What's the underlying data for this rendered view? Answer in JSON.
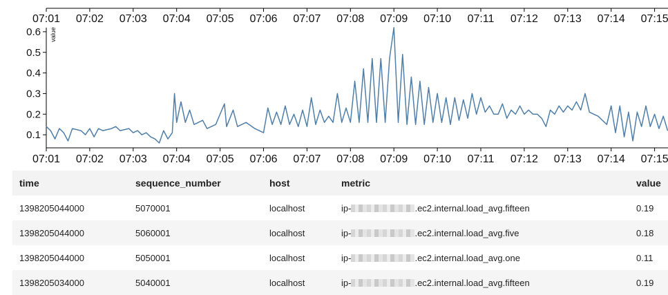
{
  "chart_data": {
    "type": "line",
    "title": "",
    "xlabel": "",
    "ylabel": "value",
    "x_tick_labels": [
      "07:01",
      "07:02",
      "07:03",
      "07:04",
      "07:05",
      "07:06",
      "07:07",
      "07:08",
      "07:09",
      "07:10",
      "07:11",
      "07:12",
      "07:13",
      "07:14",
      "07:15"
    ],
    "x_range": [
      "07:01",
      "07:15.3"
    ],
    "ylim": [
      0.05,
      0.65
    ],
    "y_ticks": [
      0.1,
      0.2,
      0.3,
      0.4,
      0.5,
      0.6
    ],
    "grid": false,
    "color": "#4f7ea8",
    "series": [
      {
        "values": [
          [
            "07:01.0",
            0.14
          ],
          [
            "07:01.1",
            0.12
          ],
          [
            "07:01.2",
            0.08
          ],
          [
            "07:01.3",
            0.13
          ],
          [
            "07:01.4",
            0.11
          ],
          [
            "07:01.5",
            0.07
          ],
          [
            "07:01.6",
            0.13
          ],
          [
            "07:01.8",
            0.12
          ],
          [
            "07:01.9",
            0.1
          ],
          [
            "07:02.0",
            0.13
          ],
          [
            "07:02.1",
            0.09
          ],
          [
            "07:02.2",
            0.13
          ],
          [
            "07:02.3",
            0.12
          ],
          [
            "07:02.5",
            0.13
          ],
          [
            "07:02.6",
            0.14
          ],
          [
            "07:02.7",
            0.12
          ],
          [
            "07:02.9",
            0.13
          ],
          [
            "07:03.0",
            0.11
          ],
          [
            "07:03.1",
            0.12
          ],
          [
            "07:03.2",
            0.1
          ],
          [
            "07:03.3",
            0.11
          ],
          [
            "07:03.4",
            0.09
          ],
          [
            "07:03.5",
            0.08
          ],
          [
            "07:03.6",
            0.06
          ],
          [
            "07:03.7",
            0.12
          ],
          [
            "07:03.8",
            0.08
          ],
          [
            "07:03.9",
            0.11
          ],
          [
            "07:03.95",
            0.3
          ],
          [
            "07:04.0",
            0.16
          ],
          [
            "07:04.1",
            0.26
          ],
          [
            "07:04.2",
            0.16
          ],
          [
            "07:04.3",
            0.22
          ],
          [
            "07:04.4",
            0.15
          ],
          [
            "07:04.6",
            0.17
          ],
          [
            "07:04.7",
            0.13
          ],
          [
            "07:04.9",
            0.15
          ],
          [
            "07:05.1",
            0.25
          ],
          [
            "07:05.15",
            0.14
          ],
          [
            "07:05.3",
            0.22
          ],
          [
            "07:05.4",
            0.14
          ],
          [
            "07:05.6",
            0.16
          ],
          [
            "07:05.8",
            0.13
          ],
          [
            "07:05.9",
            0.12
          ],
          [
            "07:06.0",
            0.11
          ],
          [
            "07:06.1",
            0.23
          ],
          [
            "07:06.2",
            0.15
          ],
          [
            "07:06.3",
            0.21
          ],
          [
            "07:06.4",
            0.15
          ],
          [
            "07:06.5",
            0.24
          ],
          [
            "07:06.6",
            0.15
          ],
          [
            "07:06.7",
            0.2
          ],
          [
            "07:06.8",
            0.14
          ],
          [
            "07:06.9",
            0.22
          ],
          [
            "07:07.0",
            0.14
          ],
          [
            "07:07.1",
            0.28
          ],
          [
            "07:07.2",
            0.15
          ],
          [
            "07:07.3",
            0.22
          ],
          [
            "07:07.4",
            0.16
          ],
          [
            "07:07.5",
            0.19
          ],
          [
            "07:07.6",
            0.16
          ],
          [
            "07:07.7",
            0.3
          ],
          [
            "07:07.8",
            0.16
          ],
          [
            "07:07.9",
            0.23
          ],
          [
            "07:08.0",
            0.16
          ],
          [
            "07:08.1",
            0.36
          ],
          [
            "07:08.2",
            0.16
          ],
          [
            "07:08.3",
            0.42
          ],
          [
            "07:08.4",
            0.16
          ],
          [
            "07:08.5",
            0.47
          ],
          [
            "07:08.6",
            0.16
          ],
          [
            "07:08.7",
            0.47
          ],
          [
            "07:08.8",
            0.16
          ],
          [
            "07:08.9",
            0.47
          ],
          [
            "07:09.0",
            0.62
          ],
          [
            "07:09.1",
            0.16
          ],
          [
            "07:09.2",
            0.49
          ],
          [
            "07:09.3",
            0.15
          ],
          [
            "07:09.4",
            0.38
          ],
          [
            "07:09.5",
            0.15
          ],
          [
            "07:09.6",
            0.36
          ],
          [
            "07:09.7",
            0.15
          ],
          [
            "07:09.8",
            0.33
          ],
          [
            "07:09.9",
            0.16
          ],
          [
            "07:10.0",
            0.3
          ],
          [
            "07:10.1",
            0.16
          ],
          [
            "07:10.2",
            0.28
          ],
          [
            "07:10.3",
            0.15
          ],
          [
            "07:10.4",
            0.28
          ],
          [
            "07:10.5",
            0.17
          ],
          [
            "07:10.6",
            0.27
          ],
          [
            "07:10.7",
            0.18
          ],
          [
            "07:10.8",
            0.3
          ],
          [
            "07:10.9",
            0.2
          ],
          [
            "07:11.0",
            0.28
          ],
          [
            "07:11.1",
            0.21
          ],
          [
            "07:11.2",
            0.24
          ],
          [
            "07:11.3",
            0.2
          ],
          [
            "07:11.4",
            0.2
          ],
          [
            "07:11.5",
            0.25
          ],
          [
            "07:11.6",
            0.18
          ],
          [
            "07:11.7",
            0.22
          ],
          [
            "07:11.8",
            0.2
          ],
          [
            "07:11.9",
            0.24
          ],
          [
            "07:12.0",
            0.2
          ],
          [
            "07:12.1",
            0.22
          ],
          [
            "07:12.2",
            0.2
          ],
          [
            "07:12.3",
            0.2
          ],
          [
            "07:12.4",
            0.18
          ],
          [
            "07:12.5",
            0.14
          ],
          [
            "07:12.6",
            0.22
          ],
          [
            "07:12.7",
            0.2
          ],
          [
            "07:12.8",
            0.24
          ],
          [
            "07:12.9",
            0.21
          ],
          [
            "07:13.0",
            0.24
          ],
          [
            "07:13.1",
            0.22
          ],
          [
            "07:13.2",
            0.26
          ],
          [
            "07:13.3",
            0.22
          ],
          [
            "07:13.4",
            0.3
          ],
          [
            "07:13.5",
            0.21
          ],
          [
            "07:13.6",
            0.2
          ],
          [
            "07:13.7",
            0.19
          ],
          [
            "07:13.8",
            0.17
          ],
          [
            "07:13.9",
            0.15
          ],
          [
            "07:14.0",
            0.24
          ],
          [
            "07:14.1",
            0.11
          ],
          [
            "07:14.2",
            0.24
          ],
          [
            "07:14.3",
            0.09
          ],
          [
            "07:14.4",
            0.21
          ],
          [
            "07:14.5",
            0.07
          ],
          [
            "07:14.6",
            0.21
          ],
          [
            "07:14.7",
            0.14
          ],
          [
            "07:14.8",
            0.24
          ],
          [
            "07:14.9",
            0.14
          ],
          [
            "07:15.0",
            0.2
          ],
          [
            "07:15.1",
            0.13
          ],
          [
            "07:15.2",
            0.19
          ],
          [
            "07:15.3",
            0.12
          ]
        ]
      }
    ]
  },
  "table": {
    "columns": [
      "time",
      "sequence_number",
      "host",
      "metric",
      "value"
    ],
    "rows": [
      {
        "time": "1398205044000",
        "sequence_number": "5070001",
        "host": "localhost",
        "metric_prefix": "ip-",
        "metric_suffix": ".ec2.internal.load_avg.fifteen",
        "value": "0.19"
      },
      {
        "time": "1398205044000",
        "sequence_number": "5060001",
        "host": "localhost",
        "metric_prefix": "ip-",
        "metric_suffix": ".ec2.internal.load_avg.five",
        "value": "0.18"
      },
      {
        "time": "1398205044000",
        "sequence_number": "5050001",
        "host": "localhost",
        "metric_prefix": "ip-",
        "metric_suffix": ".ec2.internal.load_avg.one",
        "value": "0.11"
      },
      {
        "time": "1398205034000",
        "sequence_number": "5040001",
        "host": "localhost",
        "metric_prefix": "ip-",
        "metric_suffix": ".ec2.internal.load_avg.fifteen",
        "value": "0.19"
      }
    ]
  }
}
